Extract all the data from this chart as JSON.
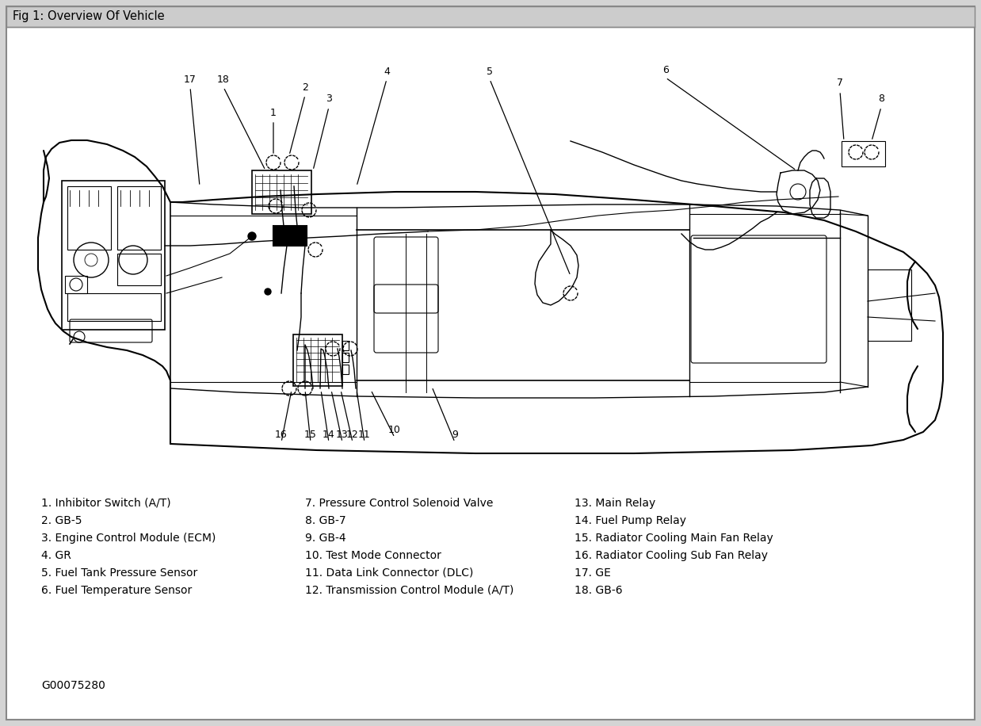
{
  "title": "Fig 1: Overview Of Vehicle",
  "background_color": "#d4d4d4",
  "diagram_bg": "#ffffff",
  "border_color": "#777777",
  "line_color": "#000000",
  "figure_code": "G00075280",
  "legend_col1": [
    "1. Inhibitor Switch (A/T)",
    "2. GB-5",
    "3. Engine Control Module (ECM)",
    "4. GR",
    "5. Fuel Tank Pressure Sensor",
    "6. Fuel Temperature Sensor"
  ],
  "legend_col2": [
    "7. Pressure Control Solenoid Valve",
    "8. GB-7",
    "9. GB-4",
    "10. Test Mode Connector",
    "11. Data Link Connector (DLC)",
    "12. Transmission Control Module (A/T)"
  ],
  "legend_col3": [
    "13. Main Relay",
    "14. Fuel Pump Relay",
    "15. Radiator Cooling Main Fan Relay",
    "16. Radiator Cooling Sub Fan Relay",
    "17. GE",
    "18. GB-6"
  ],
  "fig_width": 12.38,
  "fig_height": 9.16,
  "dpi": 100
}
